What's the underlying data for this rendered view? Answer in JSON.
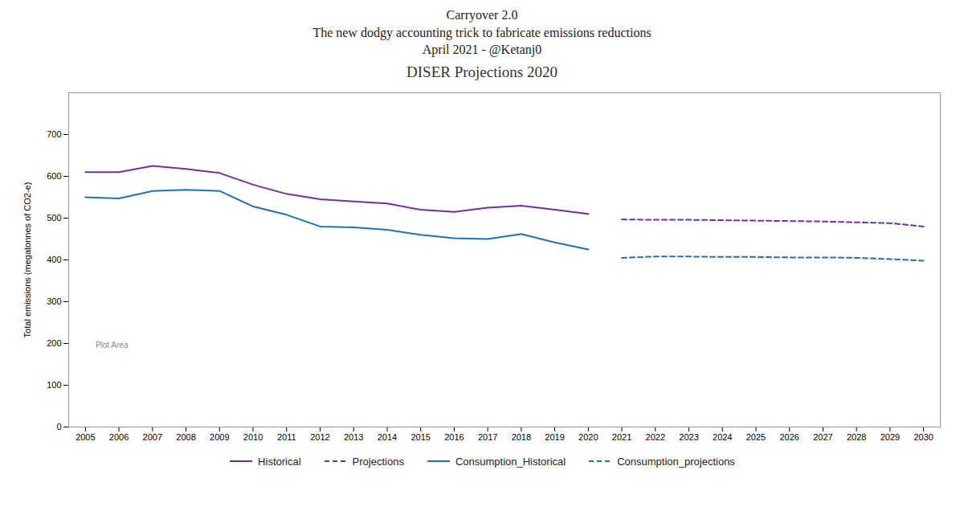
{
  "chart_data": {
    "type": "line",
    "title": "Carryover 2.0\nThe new dodgy accounting trick to fabricate emissions reductions\nApril 2021 - @Ketanj0",
    "subtitle": "DISER Projections 2020",
    "ylabel": "Total emissions (megatonnes of CO2-e)",
    "x": [
      2005,
      2006,
      2007,
      2008,
      2009,
      2010,
      2011,
      2012,
      2013,
      2014,
      2015,
      2016,
      2017,
      2018,
      2019,
      2020,
      2021,
      2022,
      2023,
      2024,
      2025,
      2026,
      2027,
      2028,
      2029,
      2030
    ],
    "series": [
      {
        "name": "Historical",
        "color": "#7030a0",
        "line_style": "solid",
        "values": [
          610,
          610,
          625,
          618,
          608,
          580,
          558,
          545,
          540,
          535,
          520,
          515,
          525,
          530,
          520,
          510,
          null,
          null,
          null,
          null,
          null,
          null,
          null,
          null,
          null,
          null
        ]
      },
      {
        "name": "Projections",
        "color": "#7030a0",
        "line_style": "dashed",
        "values": [
          null,
          null,
          null,
          null,
          null,
          null,
          null,
          null,
          null,
          null,
          null,
          null,
          null,
          null,
          null,
          null,
          497,
          496,
          496,
          495,
          494,
          493,
          492,
          490,
          488,
          480
        ]
      },
      {
        "name": "Consumption_Historical",
        "color": "#2070b4",
        "line_style": "solid",
        "values": [
          550,
          547,
          565,
          568,
          565,
          528,
          508,
          480,
          478,
          472,
          460,
          452,
          450,
          462,
          442,
          425,
          null,
          null,
          null,
          null,
          null,
          null,
          null,
          null,
          null,
          null
        ]
      },
      {
        "name": "Consumption_projections",
        "color": "#2070b4",
        "line_style": "dashed",
        "values": [
          null,
          null,
          null,
          null,
          null,
          null,
          null,
          null,
          null,
          null,
          null,
          null,
          null,
          null,
          null,
          null,
          405,
          408,
          408,
          407,
          407,
          406,
          406,
          405,
          402,
          398
        ]
      }
    ],
    "annotations": [
      {
        "text": "Plot Area",
        "x": 2005.3,
        "y": 195
      }
    ],
    "xlim": [
      2004.5,
      2030.5
    ],
    "xticks": [
      2005,
      2006,
      2007,
      2008,
      2009,
      2010,
      2011,
      2012,
      2013,
      2014,
      2015,
      2016,
      2017,
      2018,
      2019,
      2020,
      2021,
      2022,
      2023,
      2024,
      2025,
      2026,
      2027,
      2028,
      2029,
      2030
    ],
    "ylim": [
      0,
      800
    ],
    "yticks": [
      0,
      100,
      200,
      300,
      400,
      500,
      600,
      700
    ],
    "grid": false,
    "legend": "bottom"
  }
}
